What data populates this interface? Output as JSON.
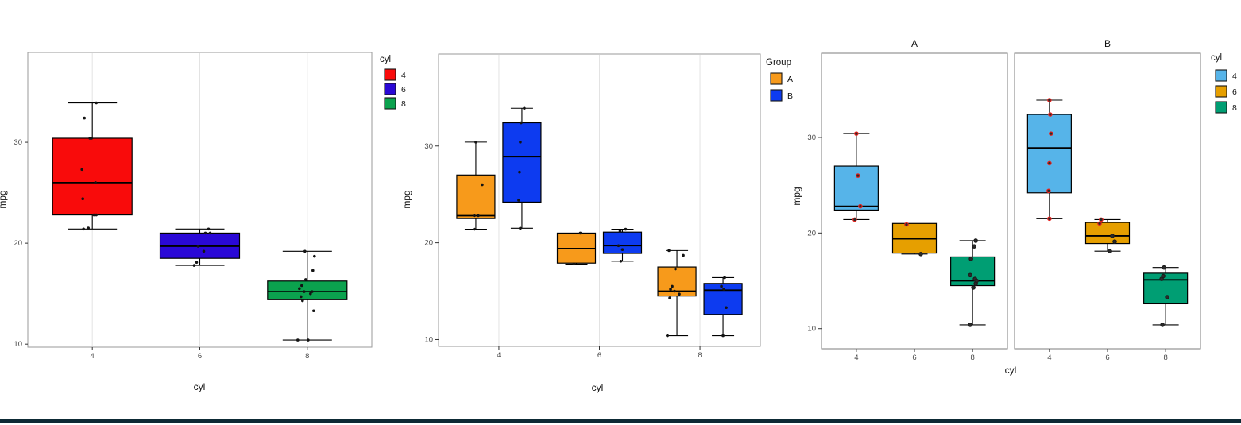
{
  "page": {
    "background": "#ffffff",
    "bottom_bar_color": "#0d2a35",
    "grid_color": "#e3e3e3",
    "panel_fill": "#ffffff"
  },
  "chart_data": [
    {
      "type": "boxplot",
      "title": "",
      "xlabel": "cyl",
      "ylabel": "mpg",
      "categories": [
        "4",
        "6",
        "8"
      ],
      "y_ticks": [
        10,
        20,
        30
      ],
      "ylim": [
        9.7,
        38.9
      ],
      "grid": "vertical-major-x",
      "legend": {
        "title": "cyl",
        "position": "right",
        "entries": [
          {
            "label": "4",
            "color": "#f90b0b"
          },
          {
            "label": "6",
            "color": "#2a08d6"
          },
          {
            "label": "8",
            "color": "#0ba24e"
          }
        ]
      },
      "point_colors": {
        "default": "#141414",
        "red": "#e8221e",
        "black": "#1c1c1c"
      },
      "panels": [
        {
          "title": "",
          "boxes": [
            {
              "category": "4",
              "color": "#f90b0b",
              "min": 21.4,
              "q1": 22.8,
              "median": 26.0,
              "q3": 30.4,
              "max": 33.9,
              "points": [
                [
                  33.9,
                  5
                ],
                [
                  32.4,
                  -10
                ],
                [
                  30.4,
                  -3
                ],
                [
                  30.4,
                  -1
                ],
                [
                  27.3,
                  -13
                ],
                [
                  26.0,
                  4
                ],
                [
                  24.4,
                  -12
                ],
                [
                  22.8,
                  2
                ],
                [
                  22.8,
                  5
                ],
                [
                  21.5,
                  -5
                ],
                [
                  21.4,
                  -11
                ]
              ]
            },
            {
              "category": "6",
              "color": "#2a08d6",
              "min": 17.8,
              "q1": 18.5,
              "median": 19.7,
              "q3": 21.0,
              "max": 21.4,
              "points": [
                [
                  21.4,
                  11
                ],
                [
                  21.0,
                  7
                ],
                [
                  21.0,
                  13
                ],
                [
                  19.7,
                  -2
                ],
                [
                  19.2,
                  5
                ],
                [
                  18.1,
                  -4
                ],
                [
                  17.8,
                  -7
                ]
              ]
            },
            {
              "category": "8",
              "color": "#0ba24e",
              "min": 10.4,
              "q1": 14.4,
              "median": 15.2,
              "q3": 16.25,
              "max": 19.2,
              "points": [
                [
                  19.2,
                  -3
                ],
                [
                  18.7,
                  9
                ],
                [
                  17.3,
                  7
                ],
                [
                  16.4,
                  -2
                ],
                [
                  15.8,
                  -7
                ],
                [
                  15.5,
                  -10
                ],
                [
                  15.2,
                  -4
                ],
                [
                  15.2,
                  6
                ],
                [
                  15.0,
                  4
                ],
                [
                  14.7,
                  -8
                ],
                [
                  14.3,
                  -6
                ],
                [
                  13.3,
                  8
                ],
                [
                  10.4,
                  -12
                ],
                [
                  10.4,
                  1
                ]
              ]
            }
          ]
        }
      ]
    },
    {
      "type": "boxplot",
      "title": "",
      "xlabel": "cyl",
      "ylabel": "mpg",
      "categories": [
        "4",
        "6",
        "8"
      ],
      "y_ticks": [
        10,
        20,
        30
      ],
      "ylim": [
        9.3,
        39.5
      ],
      "grid": "vertical-major-x",
      "legend": {
        "title": "Group",
        "position": "right",
        "entries": [
          {
            "label": "A",
            "color": "#f79a1b"
          },
          {
            "label": "B",
            "color": "#0d3bf0"
          }
        ]
      },
      "point_colors": {
        "default": "#141414",
        "red": "#e8221e",
        "black": "#1c1c1c"
      },
      "panels": [
        {
          "title": "",
          "boxes": [
            {
              "category": "4",
              "group": "A",
              "color": "#f79a1b",
              "min": 21.4,
              "q1": 22.5,
              "median": 22.8,
              "q3": 27.0,
              "max": 30.4,
              "points": [
                [
                  30.4,
                  0
                ],
                [
                  26.0,
                  8
                ],
                [
                  22.8,
                  -2
                ],
                [
                  22.8,
                  3
                ],
                [
                  21.4,
                  -2
                ]
              ]
            },
            {
              "category": "4",
              "group": "B",
              "color": "#0d3bf0",
              "min": 21.5,
              "q1": 24.2,
              "median": 28.9,
              "q3": 32.4,
              "max": 33.9,
              "points": [
                [
                  33.9,
                  3
                ],
                [
                  32.4,
                  -1
                ],
                [
                  30.4,
                  -2
                ],
                [
                  27.3,
                  -3
                ],
                [
                  24.4,
                  -4
                ],
                [
                  21.5,
                  -2
                ]
              ]
            },
            {
              "category": "6",
              "group": "A",
              "color": "#f79a1b",
              "min": 17.8,
              "q1": 17.9,
              "median": 19.4,
              "q3": 21.0,
              "max": 21.0,
              "points": [
                [
                  21.0,
                  5
                ],
                [
                  17.8,
                  -3
                ]
              ]
            },
            {
              "category": "6",
              "group": "B",
              "color": "#0d3bf0",
              "min": 18.1,
              "q1": 18.9,
              "median": 19.7,
              "q3": 21.1,
              "max": 21.4,
              "points": [
                [
                  21.4,
                  4
                ],
                [
                  21.2,
                  -3
                ],
                [
                  19.7,
                  -5
                ],
                [
                  19.3,
                  0
                ],
                [
                  18.1,
                  -2
                ]
              ]
            },
            {
              "category": "8",
              "group": "A",
              "color": "#f79a1b",
              "min": 10.4,
              "q1": 14.5,
              "median": 15.0,
              "q3": 17.5,
              "max": 19.2,
              "points": [
                [
                  19.2,
                  -10
                ],
                [
                  18.7,
                  8
                ],
                [
                  17.3,
                  -2
                ],
                [
                  15.5,
                  -6
                ],
                [
                  15.2,
                  -8
                ],
                [
                  15.0,
                  -3
                ],
                [
                  14.7,
                  3
                ],
                [
                  14.3,
                  -9
                ],
                [
                  10.4,
                  -12
                ]
              ]
            },
            {
              "category": "8",
              "group": "B",
              "color": "#0d3bf0",
              "min": 10.4,
              "q1": 12.6,
              "median": 15.1,
              "q3": 15.8,
              "max": 16.4,
              "points": [
                [
                  16.4,
                  2
                ],
                [
                  15.5,
                  -2
                ],
                [
                  15.2,
                  1
                ],
                [
                  13.3,
                  4
                ],
                [
                  10.4,
                  0
                ]
              ]
            }
          ]
        }
      ]
    },
    {
      "type": "boxplot",
      "title": "",
      "xlabel": "cyl",
      "ylabel": "mpg",
      "categories": [
        "4",
        "6",
        "8"
      ],
      "y_ticks": [
        10,
        20,
        30
      ],
      "ylim": [
        7.9,
        38.8
      ],
      "grid": "none",
      "facets": [
        "A",
        "B"
      ],
      "legend": {
        "title": "cyl",
        "position": "right",
        "entries": [
          {
            "label": "4",
            "color": "#56b4e9"
          },
          {
            "label": "6",
            "color": "#e69f00"
          },
          {
            "label": "8",
            "color": "#009e73"
          }
        ]
      },
      "point_colors": {
        "default": "#1c1c1c",
        "red": "#e8221e",
        "black": "#1c1c1c"
      },
      "panels": [
        {
          "title": "A",
          "boxes": [
            {
              "category": "4",
              "color": "#56b4e9",
              "min": 21.4,
              "q1": 22.4,
              "median": 22.8,
              "q3": 27.0,
              "max": 30.4,
              "points": [
                [
                  30.4,
                  0,
                  "red"
                ],
                [
                  26.0,
                  2,
                  "red"
                ],
                [
                  22.8,
                  5,
                  "red"
                ],
                [
                  21.4,
                  -2,
                  "red"
                ]
              ]
            },
            {
              "category": "6",
              "color": "#e69f00",
              "min": 17.8,
              "q1": 17.9,
              "median": 19.4,
              "q3": 21.0,
              "max": 21.0,
              "points": [
                [
                  20.9,
                  -10,
                  "red"
                ],
                [
                  17.8,
                  8,
                  "black"
                ]
              ]
            },
            {
              "category": "8",
              "color": "#009e73",
              "min": 10.4,
              "q1": 14.5,
              "median": 15.0,
              "q3": 17.5,
              "max": 19.2,
              "points": [
                [
                  19.2,
                  4,
                  "black"
                ],
                [
                  18.6,
                  2,
                  "black"
                ],
                [
                  17.3,
                  -2,
                  "black"
                ],
                [
                  15.6,
                  -3,
                  "black"
                ],
                [
                  15.2,
                  3,
                  "black"
                ],
                [
                  15.0,
                  5,
                  "black"
                ],
                [
                  14.7,
                  4,
                  "black"
                ],
                [
                  14.3,
                  1,
                  "black"
                ],
                [
                  10.4,
                  -3,
                  "black"
                ]
              ]
            }
          ]
        },
        {
          "title": "B",
          "boxes": [
            {
              "category": "4",
              "color": "#56b4e9",
              "min": 21.5,
              "q1": 24.2,
              "median": 28.9,
              "q3": 32.4,
              "max": 33.9,
              "points": [
                [
                  33.9,
                  0,
                  "red"
                ],
                [
                  32.4,
                  1,
                  "red"
                ],
                [
                  30.4,
                  2,
                  "red"
                ],
                [
                  27.3,
                  0,
                  "red"
                ],
                [
                  24.4,
                  -1,
                  "red"
                ],
                [
                  21.5,
                  0,
                  "red"
                ]
              ]
            },
            {
              "category": "6",
              "color": "#e69f00",
              "min": 18.1,
              "q1": 18.9,
              "median": 19.7,
              "q3": 21.1,
              "max": 21.4,
              "points": [
                [
                  21.4,
                  -8,
                  "red"
                ],
                [
                  21.0,
                  -10,
                  "red"
                ],
                [
                  19.7,
                  6,
                  "black"
                ],
                [
                  19.1,
                  9,
                  "black"
                ],
                [
                  18.1,
                  3,
                  "black"
                ]
              ]
            },
            {
              "category": "8",
              "color": "#009e73",
              "min": 10.4,
              "q1": 12.6,
              "median": 15.1,
              "q3": 15.8,
              "max": 16.4,
              "points": [
                [
                  16.4,
                  -2,
                  "black"
                ],
                [
                  15.5,
                  -3,
                  "black"
                ],
                [
                  15.2,
                  -5,
                  "black"
                ],
                [
                  13.3,
                  2,
                  "black"
                ],
                [
                  10.4,
                  -4,
                  "black"
                ]
              ]
            }
          ]
        }
      ]
    }
  ]
}
